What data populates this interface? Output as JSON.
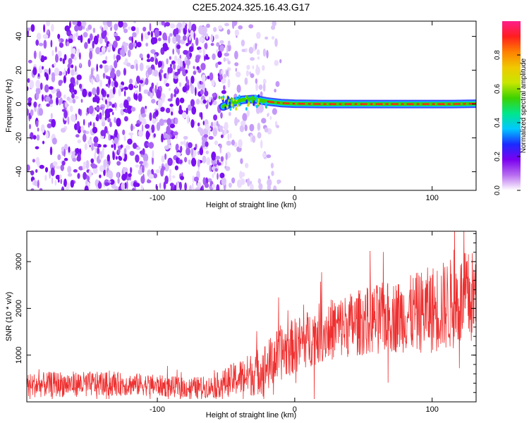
{
  "title": "C2E5.2024.325.16.43.G17",
  "chart_data": [
    {
      "type": "heatmap",
      "xlabel": "Height of straight line (km)",
      "ylabel": "Frequency (Hz)",
      "xlim": [
        -195,
        132
      ],
      "ylim": [
        -51,
        49
      ],
      "xticks": [
        -100,
        0,
        100
      ],
      "yticks": [
        -40,
        -20,
        0,
        20,
        40
      ],
      "xtick_labels": [
        "-100",
        "0",
        "100"
      ],
      "ytick_labels": [
        "-40",
        "-20",
        "0",
        "20",
        "40"
      ],
      "noise_region_x": [
        -195,
        -30
      ],
      "signal_trace": [
        {
          "x": -52,
          "y": -1.5
        },
        {
          "x": -45,
          "y": 1.0
        },
        {
          "x": -38,
          "y": 2.5
        },
        {
          "x": -30,
          "y": 3.0
        },
        {
          "x": -20,
          "y": 1.5
        },
        {
          "x": -10,
          "y": 0.6
        },
        {
          "x": 0,
          "y": 0.2
        },
        {
          "x": 20,
          "y": 0.0
        },
        {
          "x": 50,
          "y": 0.0
        },
        {
          "x": 80,
          "y": 0.0
        },
        {
          "x": 100,
          "y": 0.0
        },
        {
          "x": 115,
          "y": 0.0
        },
        {
          "x": 132,
          "y": 0.2
        }
      ],
      "colorbar": {
        "label": "Normalized spectral amplitude",
        "range": [
          0,
          1
        ],
        "ticks": [
          0.0,
          0.2,
          0.4,
          0.6,
          0.8
        ],
        "tick_labels": [
          "0.0",
          "0.2",
          "0.4",
          "0.6",
          "0.8"
        ],
        "colors": [
          "#ffffff",
          "#b86cf0",
          "#7a00f0",
          "#1a2bff",
          "#00c8ff",
          "#00e68c",
          "#3cd200",
          "#c8e600",
          "#f0c800",
          "#ff8000",
          "#ff1e1e",
          "#ff1e8c"
        ]
      }
    },
    {
      "type": "line",
      "xlabel": "Height of straight line (km)",
      "ylabel": "SNR (10 * v/v)",
      "xlim": [
        -195,
        132
      ],
      "ylim": [
        0,
        3650
      ],
      "xticks": [
        -100,
        0,
        100
      ],
      "yticks": [
        1000,
        2000,
        3000
      ],
      "xtick_labels": [
        "-100",
        "0",
        "100"
      ],
      "ytick_labels": [
        "1000",
        "2000",
        "3000"
      ],
      "series": [
        {
          "color": "#ee3030",
          "envelope_x": [
            -195,
            -170,
            -140,
            -110,
            -80,
            -60,
            -50,
            -40,
            -30,
            -20,
            -10,
            0,
            20,
            40,
            60,
            80,
            100,
            115,
            132
          ],
          "mean": [
            350,
            380,
            380,
            370,
            300,
            320,
            420,
            520,
            600,
            760,
            1050,
            1200,
            1500,
            1650,
            1780,
            1850,
            1980,
            2100,
            2250
          ],
          "spread": [
            260,
            280,
            260,
            240,
            220,
            240,
            320,
            400,
            480,
            560,
            600,
            600,
            650,
            700,
            750,
            800,
            950,
            1000,
            1050
          ]
        }
      ]
    }
  ]
}
